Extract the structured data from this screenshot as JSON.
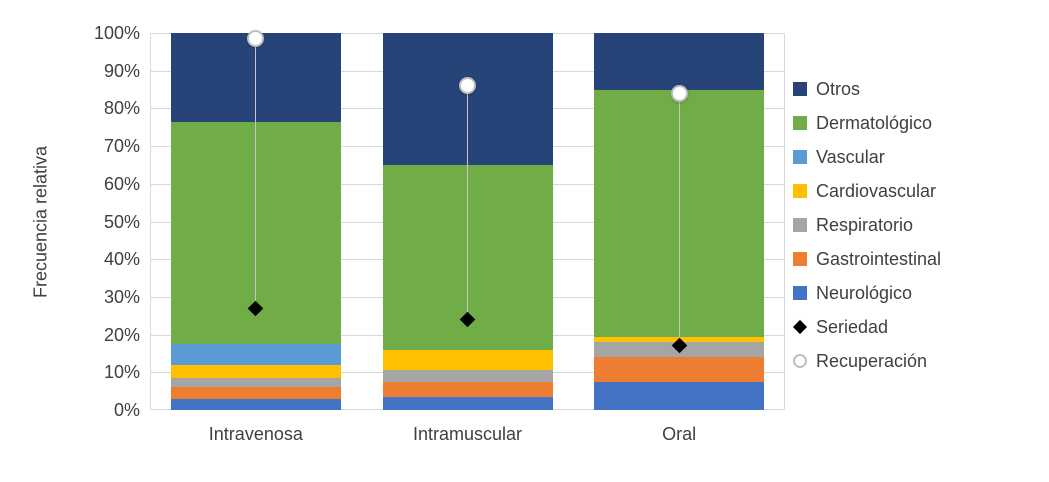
{
  "chart_data": {
    "type": "bar",
    "subtype": "stacked-percent-columns-with-point-markers",
    "title": "",
    "ylabel": "Frecuencia relativa",
    "xlabel": "",
    "ylim": [
      0,
      100
    ],
    "ytick_suffix": "%",
    "yticks": [
      "0%",
      "10%",
      "20%",
      "30%",
      "40%",
      "50%",
      "60%",
      "70%",
      "80%",
      "90%",
      "100%"
    ],
    "grid": true,
    "legend_position": "right",
    "categories": [
      "Intravenosa",
      "Intramuscular",
      "Oral"
    ],
    "stack_order_bottom_to_top": [
      "Neurológico",
      "Gastrointestinal",
      "Respiratorio",
      "Cardiovascular",
      "Vascular",
      "Dermatológico",
      "Otros"
    ],
    "series": [
      {
        "name": "Otros",
        "color": "#264478",
        "values": [
          23.5,
          35,
          15
        ]
      },
      {
        "name": "Dermatológico",
        "color": "#70AD47",
        "values": [
          59,
          49,
          65.5
        ]
      },
      {
        "name": "Vascular",
        "color": "#5B9BD5",
        "values": [
          5.5,
          0,
          0
        ]
      },
      {
        "name": "Cardiovascular",
        "color": "#FFC000",
        "values": [
          3.5,
          5.5,
          1.5
        ]
      },
      {
        "name": "Respiratorio",
        "color": "#A5A5A5",
        "values": [
          2.5,
          3,
          4
        ]
      },
      {
        "name": "Gastrointestinal",
        "color": "#ED7D31",
        "values": [
          3,
          4,
          6.5
        ]
      },
      {
        "name": "Neurológico",
        "color": "#4472C4",
        "values": [
          3,
          3.5,
          7.5
        ]
      }
    ],
    "markers": [
      {
        "name": "Seriedad",
        "shape": "diamond",
        "fill": "#000000",
        "values": [
          27,
          24,
          17
        ]
      },
      {
        "name": "Recuperación",
        "shape": "circle",
        "fill": "#FFFFFF",
        "stroke": "#BFBFBF",
        "values": [
          98.5,
          86,
          84
        ]
      }
    ],
    "legend": [
      "Otros",
      "Dermatológico",
      "Vascular",
      "Cardiovascular",
      "Respiratorio",
      "Gastrointestinal",
      "Neurológico",
      "Seriedad",
      "Recuperación"
    ],
    "colors": {
      "gridline": "#D9D9D9",
      "axis_text": "#404040",
      "dropline": "#C8C6C4"
    }
  }
}
